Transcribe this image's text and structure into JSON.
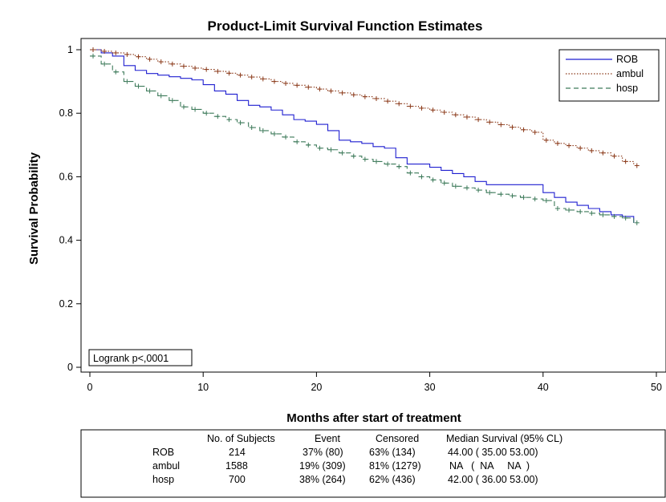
{
  "chart_data": {
    "type": "line",
    "title": "Product-Limit Survival Function Estimates",
    "xlabel": "Months after start of treatment",
    "ylabel": "Survival Probability",
    "xlim": [
      0,
      50
    ],
    "ylim": [
      0,
      1
    ],
    "xticks": [
      "0",
      "10",
      "20",
      "30",
      "40",
      "50"
    ],
    "yticks": [
      "0",
      "0.2",
      "0.4",
      "0.6",
      "0.8",
      "1"
    ],
    "legend_position": "top-right",
    "annotation": "Logrank p<,0001",
    "series": [
      {
        "name": "ROB",
        "color": "#1f1fd0",
        "style": "solid",
        "x": [
          0,
          1,
          2,
          3,
          4,
          5,
          6,
          7,
          8,
          9,
          10,
          11,
          12,
          13,
          14,
          15,
          16,
          17,
          18,
          19,
          20,
          21,
          22,
          23,
          24,
          25,
          26,
          27,
          28,
          29,
          30,
          31,
          32,
          33,
          34,
          35,
          36,
          37,
          38,
          39,
          40,
          41,
          42,
          43,
          44,
          45,
          46,
          47,
          48
        ],
        "y": [
          1.0,
          0.99,
          0.98,
          0.95,
          0.935,
          0.925,
          0.92,
          0.915,
          0.91,
          0.905,
          0.89,
          0.87,
          0.86,
          0.84,
          0.825,
          0.82,
          0.81,
          0.795,
          0.78,
          0.775,
          0.765,
          0.745,
          0.715,
          0.71,
          0.705,
          0.695,
          0.69,
          0.66,
          0.64,
          0.64,
          0.63,
          0.62,
          0.61,
          0.6,
          0.585,
          0.575,
          0.575,
          0.575,
          0.575,
          0.575,
          0.55,
          0.535,
          0.52,
          0.51,
          0.5,
          0.49,
          0.48,
          0.475,
          0.455
        ]
      },
      {
        "name": "ambul",
        "color": "#8b3a1a",
        "style": "dotted",
        "x": [
          0,
          1,
          2,
          3,
          4,
          5,
          6,
          7,
          8,
          9,
          10,
          11,
          12,
          13,
          14,
          15,
          16,
          17,
          18,
          19,
          20,
          21,
          22,
          23,
          24,
          25,
          26,
          27,
          28,
          29,
          30,
          31,
          32,
          33,
          34,
          35,
          36,
          37,
          38,
          39,
          40,
          41,
          42,
          43,
          44,
          45,
          46,
          47,
          48
        ],
        "y": [
          1.0,
          0.995,
          0.99,
          0.985,
          0.978,
          0.97,
          0.962,
          0.955,
          0.948,
          0.942,
          0.938,
          0.932,
          0.926,
          0.92,
          0.914,
          0.908,
          0.9,
          0.894,
          0.888,
          0.882,
          0.876,
          0.87,
          0.864,
          0.858,
          0.852,
          0.846,
          0.838,
          0.83,
          0.822,
          0.816,
          0.81,
          0.803,
          0.795,
          0.788,
          0.78,
          0.772,
          0.764,
          0.756,
          0.748,
          0.74,
          0.715,
          0.705,
          0.698,
          0.69,
          0.682,
          0.675,
          0.665,
          0.648,
          0.635
        ]
      },
      {
        "name": "hosp",
        "color": "#3d7a5a",
        "style": "dashed",
        "x": [
          0,
          1,
          2,
          3,
          4,
          5,
          6,
          7,
          8,
          9,
          10,
          11,
          12,
          13,
          14,
          15,
          16,
          17,
          18,
          19,
          20,
          21,
          22,
          23,
          24,
          25,
          26,
          27,
          28,
          29,
          30,
          31,
          32,
          33,
          34,
          35,
          36,
          37,
          38,
          39,
          40,
          41,
          42,
          43,
          44,
          45,
          46,
          47,
          48
        ],
        "y": [
          0.98,
          0.955,
          0.93,
          0.9,
          0.885,
          0.87,
          0.855,
          0.84,
          0.82,
          0.812,
          0.8,
          0.79,
          0.78,
          0.77,
          0.755,
          0.745,
          0.735,
          0.725,
          0.71,
          0.7,
          0.69,
          0.685,
          0.675,
          0.665,
          0.655,
          0.648,
          0.64,
          0.632,
          0.612,
          0.6,
          0.59,
          0.58,
          0.57,
          0.565,
          0.558,
          0.55,
          0.545,
          0.54,
          0.535,
          0.53,
          0.525,
          0.5,
          0.495,
          0.49,
          0.485,
          0.48,
          0.475,
          0.47,
          0.455
        ]
      }
    ],
    "summary_table": {
      "headers": [
        "No. of Subjects",
        "Event",
        "Censored",
        "Median Survival (95% CL)"
      ],
      "rows": [
        {
          "group": "ROB",
          "subjects": "214",
          "event": "37% (80)",
          "censored": "63% (134)",
          "median": "44.00  ( 35.00  53.00)"
        },
        {
          "group": "ambul",
          "subjects": "1588",
          "event": "19% (309)",
          "censored": "81% (1279)",
          "median": "NA   (  NA     NA  )"
        },
        {
          "group": "hosp",
          "subjects": "700",
          "event": "38% (264)",
          "censored": "62% (436)",
          "median": "42.00  ( 36.00  53.00)"
        }
      ]
    }
  }
}
